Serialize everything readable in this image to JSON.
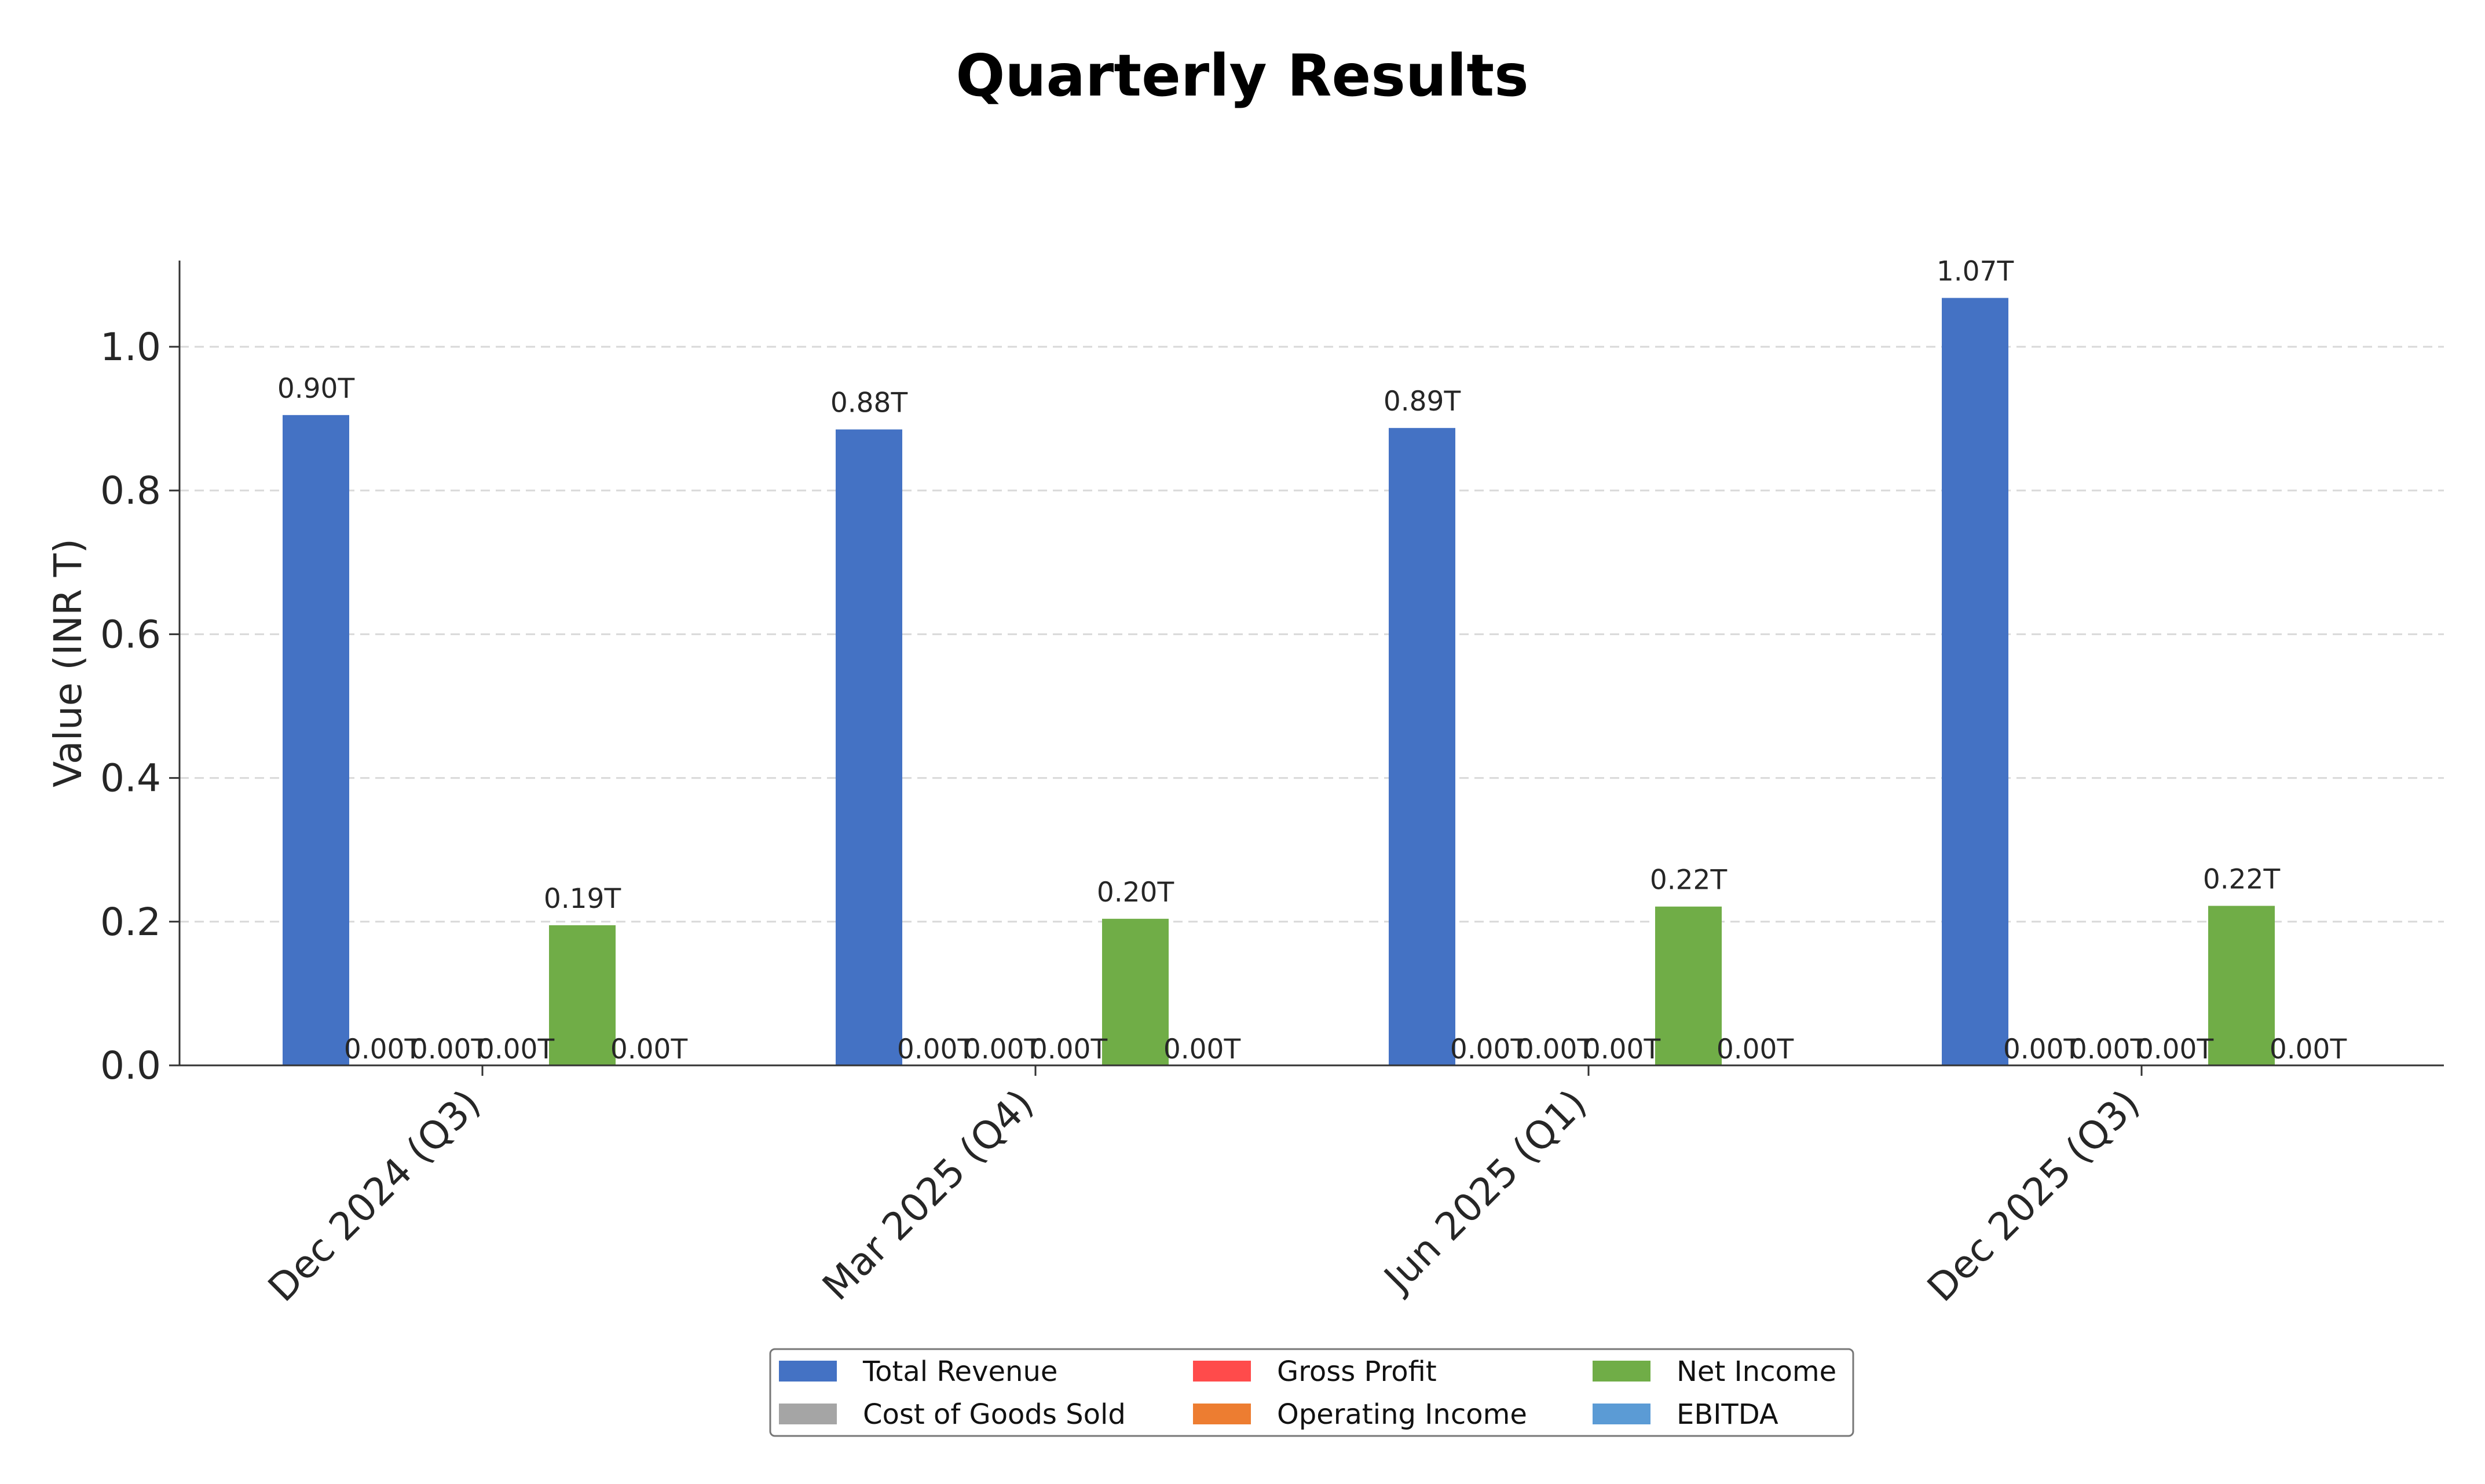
{
  "chart_data": {
    "type": "bar",
    "title": "Quarterly Results",
    "xlabel": "",
    "ylabel": "Value (INR T)",
    "ylim": [
      0,
      1.12
    ],
    "yticks": [
      "0.0",
      "0.2",
      "0.4",
      "0.6",
      "0.8",
      "1.0"
    ],
    "grid": "horizontal-dashed",
    "legend_placement": "bottom-center",
    "categories": [
      "Dec 2024 (Q3)",
      "Mar 2025 (Q4)",
      "Jun 2025 (Q1)",
      "Dec 2025 (Q3)"
    ],
    "series": [
      {
        "name": "Total Revenue",
        "color": "#4472C4",
        "values": [
          0.905,
          0.885,
          0.887,
          1.068
        ],
        "labels": [
          "0.90T",
          "0.88T",
          "0.89T",
          "1.07T"
        ]
      },
      {
        "name": "Cost of Goods Sold",
        "color": "#A5A5A5",
        "values": [
          0,
          0,
          0,
          0
        ],
        "labels": [
          "0.00T",
          "0.00T",
          "0.00T",
          "0.00T"
        ]
      },
      {
        "name": "Gross Profit",
        "color": "#FF4B4B",
        "values": [
          0,
          0,
          0,
          0
        ],
        "labels": [
          "0.00T",
          "0.00T",
          "0.00T",
          "0.00T"
        ]
      },
      {
        "name": "Operating Income",
        "color": "#ED7D31",
        "values": [
          0,
          0,
          0,
          0
        ],
        "labels": [
          "0.00T",
          "0.00T",
          "0.00T",
          "0.00T"
        ]
      },
      {
        "name": "Net Income",
        "color": "#70AD47",
        "values": [
          0.195,
          0.204,
          0.221,
          0.222
        ],
        "labels": [
          "0.19T",
          "0.20T",
          "0.22T",
          "0.22T"
        ]
      },
      {
        "name": "EBITDA",
        "color": "#5B9BD5",
        "values": [
          0,
          0,
          0,
          0
        ],
        "labels": [
          "0.00T",
          "0.00T",
          "0.00T",
          "0.00T"
        ]
      }
    ]
  }
}
